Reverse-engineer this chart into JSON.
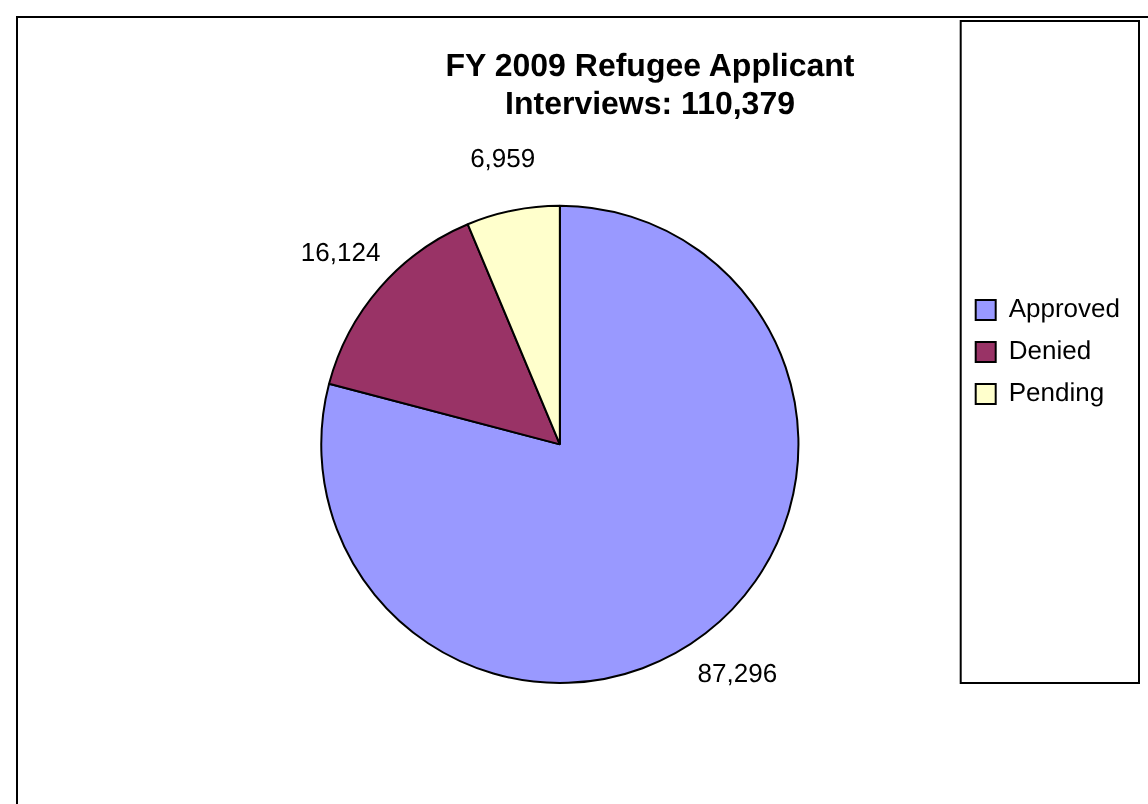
{
  "chart_data": {
    "type": "pie",
    "title": "FY 2009 Refugee Applicant Interviews: 110,379",
    "categories": [
      "Approved",
      "Denied",
      "Pending"
    ],
    "values": [
      87296,
      16124,
      6959
    ],
    "value_labels": [
      "87,296",
      "16,124",
      "6,959"
    ],
    "colors": [
      "#9999ff",
      "#993366",
      "#ffffcc"
    ],
    "legend": "right"
  }
}
